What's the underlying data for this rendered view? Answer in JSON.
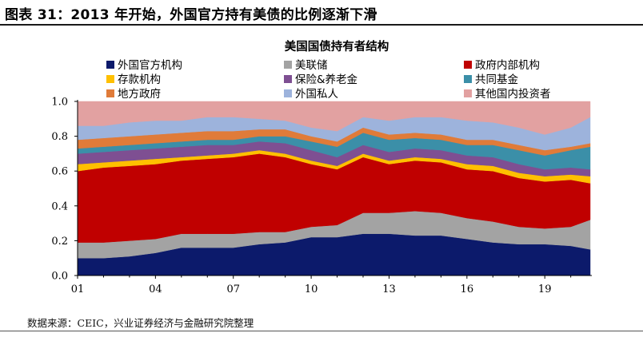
{
  "header": {
    "figure_title": "图表 31：2013 年开始，外国官方持有美债的比例逐渐下滑"
  },
  "footer": {
    "source": "数据来源：CEIC，兴业证券经济与金融研究院整理"
  },
  "chart_data": {
    "type": "area",
    "stacked": true,
    "title": "美国国债持有者结构",
    "xlabel": "",
    "ylabel": "",
    "ylim": [
      0,
      1.0
    ],
    "yticks": [
      "0.0",
      "0.2",
      "0.4",
      "0.6",
      "0.8",
      "1.0"
    ],
    "xticks": [
      "01",
      "04",
      "07",
      "10",
      "13",
      "16",
      "19"
    ],
    "xlim": [
      "2001",
      "2020 Q4"
    ],
    "grid": false,
    "legend_position": "top",
    "x": [
      2001,
      2002,
      2003,
      2004,
      2005,
      2006,
      2007,
      2008,
      2009,
      2010,
      2011,
      2012,
      2013,
      2014,
      2015,
      2016,
      2017,
      2018,
      2019,
      2020,
      2020.75
    ],
    "series": [
      {
        "name": "外国官方机构",
        "color": "#0c1a6b",
        "values": [
          0.1,
          0.1,
          0.11,
          0.13,
          0.16,
          0.16,
          0.16,
          0.18,
          0.19,
          0.22,
          0.22,
          0.24,
          0.24,
          0.23,
          0.23,
          0.21,
          0.19,
          0.18,
          0.18,
          0.17,
          0.15
        ]
      },
      {
        "name": "美联储",
        "color": "#a3a3a3",
        "values": [
          0.09,
          0.09,
          0.09,
          0.08,
          0.08,
          0.08,
          0.08,
          0.07,
          0.06,
          0.06,
          0.07,
          0.12,
          0.12,
          0.14,
          0.13,
          0.12,
          0.12,
          0.1,
          0.09,
          0.11,
          0.17
        ]
      },
      {
        "name": "政府内部机构",
        "color": "#c00000",
        "values": [
          0.41,
          0.43,
          0.43,
          0.43,
          0.42,
          0.43,
          0.44,
          0.45,
          0.43,
          0.36,
          0.32,
          0.32,
          0.28,
          0.29,
          0.29,
          0.28,
          0.29,
          0.28,
          0.27,
          0.27,
          0.21
        ]
      },
      {
        "name": "存款机构",
        "color": "#ffc000",
        "values": [
          0.04,
          0.03,
          0.03,
          0.03,
          0.02,
          0.02,
          0.02,
          0.02,
          0.02,
          0.02,
          0.02,
          0.02,
          0.02,
          0.02,
          0.02,
          0.03,
          0.03,
          0.03,
          0.03,
          0.03,
          0.04
        ]
      },
      {
        "name": "保险&养老金",
        "color": "#7e4f92",
        "values": [
          0.06,
          0.06,
          0.06,
          0.06,
          0.06,
          0.06,
          0.05,
          0.05,
          0.06,
          0.06,
          0.05,
          0.05,
          0.05,
          0.05,
          0.05,
          0.05,
          0.05,
          0.05,
          0.04,
          0.04,
          0.04
        ]
      },
      {
        "name": "共同基金",
        "color": "#3b8fa8",
        "values": [
          0.03,
          0.03,
          0.03,
          0.03,
          0.03,
          0.03,
          0.03,
          0.03,
          0.04,
          0.05,
          0.06,
          0.07,
          0.07,
          0.06,
          0.06,
          0.06,
          0.07,
          0.08,
          0.08,
          0.1,
          0.13
        ]
      },
      {
        "name": "地方政府",
        "color": "#e07b39",
        "values": [
          0.05,
          0.05,
          0.05,
          0.05,
          0.05,
          0.05,
          0.05,
          0.04,
          0.04,
          0.03,
          0.03,
          0.03,
          0.03,
          0.03,
          0.03,
          0.03,
          0.03,
          0.03,
          0.03,
          0.02,
          0.02
        ]
      },
      {
        "name": "外国私人",
        "color": "#9db3dc",
        "values": [
          0.08,
          0.07,
          0.08,
          0.08,
          0.07,
          0.08,
          0.08,
          0.06,
          0.05,
          0.05,
          0.06,
          0.06,
          0.08,
          0.09,
          0.1,
          0.11,
          0.1,
          0.1,
          0.09,
          0.11,
          0.15
        ]
      },
      {
        "name": "其他国内投资者",
        "color": "#e2a1a1",
        "values": [
          0.14,
          0.14,
          0.12,
          0.11,
          0.11,
          0.09,
          0.09,
          0.1,
          0.11,
          0.15,
          0.17,
          0.09,
          0.11,
          0.09,
          0.09,
          0.11,
          0.12,
          0.15,
          0.19,
          0.15,
          0.09
        ]
      }
    ]
  }
}
